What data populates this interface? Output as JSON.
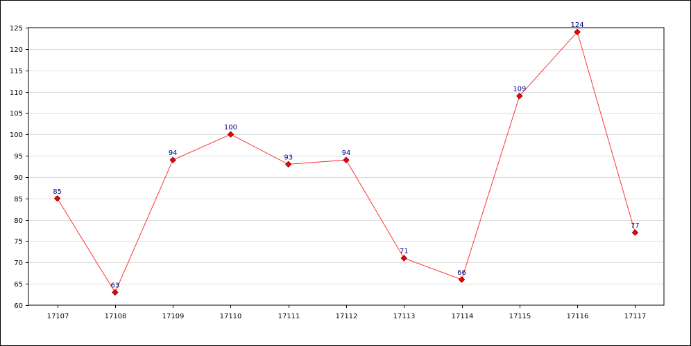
{
  "chart_data": {
    "type": "line",
    "categories": [
      "17107",
      "17108",
      "17109",
      "17110",
      "17111",
      "17112",
      "17113",
      "17114",
      "17115",
      "17116",
      "17117"
    ],
    "series": [
      {
        "values": [
          85,
          63,
          94,
          100,
          93,
          94,
          71,
          66,
          109,
          124,
          77
        ]
      }
    ],
    "ylim": [
      60,
      125
    ],
    "yticks": [
      60,
      65,
      70,
      75,
      80,
      85,
      90,
      95,
      100,
      105,
      110,
      115,
      120,
      125
    ],
    "grid": "horizontal",
    "title": "",
    "xlabel": "",
    "ylabel": "",
    "colors": {
      "line": "#ff3333",
      "marker_fill": "#ff0000",
      "marker_stroke": "#800000",
      "data_label": "#000080",
      "grid": "#dcdcdc",
      "axis": "#000000"
    }
  }
}
